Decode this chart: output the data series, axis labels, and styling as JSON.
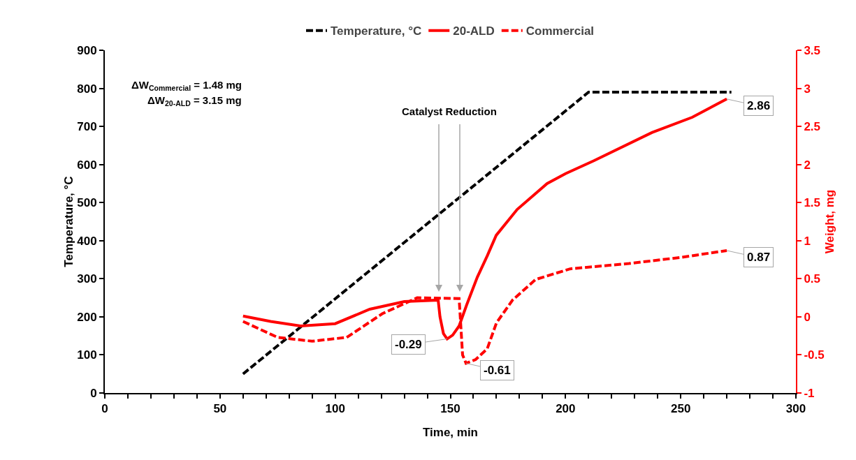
{
  "chart_data": {
    "type": "line",
    "xlabel": "Time, min",
    "ylabel": "Temperature, °C",
    "y2label": "Weight, mg",
    "xlim": [
      0,
      300
    ],
    "xticks": [
      0,
      {
        "value": 10,
        "label": null
      },
      {
        "value": 20,
        "label": null
      },
      {
        "value": 30,
        "label": null
      },
      {
        "value": 40,
        "label": null
      },
      50,
      {
        "value": 60,
        "label": null
      },
      {
        "value": 70,
        "label": null
      },
      {
        "value": 80,
        "label": null
      },
      {
        "value": 90,
        "label": null
      },
      100,
      {
        "value": 110,
        "label": null
      },
      {
        "value": 120,
        "label": null
      },
      {
        "value": 130,
        "label": null
      },
      {
        "value": 140,
        "label": null
      },
      150,
      {
        "value": 160,
        "label": null
      },
      {
        "value": 170,
        "label": null
      },
      {
        "value": 180,
        "label": null
      },
      {
        "value": 190,
        "label": null
      },
      200,
      {
        "value": 210,
        "label": null
      },
      {
        "value": 220,
        "label": null
      },
      {
        "value": 230,
        "label": null
      },
      {
        "value": 240,
        "label": null
      },
      250,
      {
        "value": 260,
        "label": null
      },
      {
        "value": 270,
        "label": null
      },
      {
        "value": 280,
        "label": null
      },
      {
        "value": 290,
        "label": null
      },
      300
    ],
    "ylim": [
      0,
      900
    ],
    "yticks": [
      0,
      100,
      200,
      300,
      400,
      500,
      600,
      700,
      800,
      900
    ],
    "y2lim": [
      -1,
      3.5
    ],
    "y2ticks": [
      -1,
      -0.5,
      0,
      0.5,
      1,
      1.5,
      2,
      2.5,
      3,
      3.5
    ],
    "grid": false,
    "legend": "top",
    "marker": "none",
    "series": [
      {
        "name": "Temperature, °C",
        "color": "#000000",
        "line_style": "dashed",
        "x": [
          60,
          210,
          272
        ],
        "values": [
          50,
          790,
          790
        ]
      },
      {
        "name": "20-ALD",
        "color": "#ff0000",
        "line_style": "solid",
        "axis": "y2",
        "x": [
          60,
          72,
          85,
          100,
          115,
          130,
          144.7,
          145.5,
          147,
          148.6,
          151,
          153.8,
          157,
          161.7,
          166,
          169.9,
          179,
          192,
          200,
          212.3,
          237.5,
          255,
          270
        ],
        "values": [
          0.01,
          -0.06,
          -0.12,
          -0.09,
          0.1,
          0.2,
          0.22,
          0.0,
          -0.22,
          -0.29,
          -0.24,
          -0.12,
          0.15,
          0.52,
          0.8,
          1.07,
          1.41,
          1.75,
          1.88,
          2.05,
          2.42,
          2.62,
          2.86
        ],
        "value_labels": [
          null,
          null,
          null,
          null,
          null,
          null,
          null,
          null,
          null,
          "-0.29",
          null,
          null,
          null,
          null,
          null,
          null,
          null,
          null,
          null,
          null,
          null,
          null,
          "2.86"
        ]
      },
      {
        "name": "Commercial",
        "color": "#ff0000",
        "line_style": "dashed",
        "axis": "y2",
        "x": [
          60,
          75,
          90,
          105,
          120.4,
          135.6,
          153.8,
          154.5,
          155.3,
          156.8,
          161,
          166,
          170,
          177,
          187,
          202,
          227.5,
          250,
          270
        ],
        "values": [
          -0.06,
          -0.27,
          -0.32,
          -0.27,
          0.04,
          0.25,
          0.24,
          -0.1,
          -0.5,
          -0.61,
          -0.56,
          -0.42,
          -0.08,
          0.22,
          0.49,
          0.63,
          0.7,
          0.78,
          0.87
        ],
        "value_labels": [
          null,
          null,
          null,
          null,
          null,
          null,
          null,
          null,
          null,
          "-0.61",
          null,
          null,
          null,
          null,
          null,
          null,
          null,
          null,
          "0.87"
        ]
      }
    ],
    "annotations": [
      "ΔW$_{Commercial}$ = 1.48 mg",
      "ΔW$_{20-ALD}$ = 3.15 mg",
      "Catalyst Reduction"
    ]
  }
}
